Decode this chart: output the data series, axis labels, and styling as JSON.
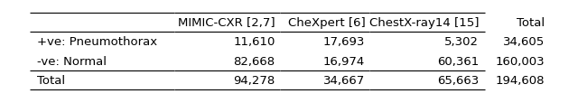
{
  "col_headers": [
    "MIMIC-CXR [2,7]",
    "CheXpert [6]",
    "ChestX-ray14 [15]",
    "Total"
  ],
  "row_headers": [
    "+ve: Pneumothorax",
    "-ve: Normal",
    "Total"
  ],
  "table_data": [
    [
      "11,610",
      "17,693",
      "5,302",
      "34,605"
    ],
    [
      "82,668",
      "16,974",
      "60,361",
      "160,003"
    ],
    [
      "94,278",
      "34,667",
      "65,663",
      "194,608"
    ]
  ],
  "figsize": [
    6.4,
    1.15
  ],
  "dpi": 100,
  "background_color": "#ffffff",
  "font_size": 9.5
}
